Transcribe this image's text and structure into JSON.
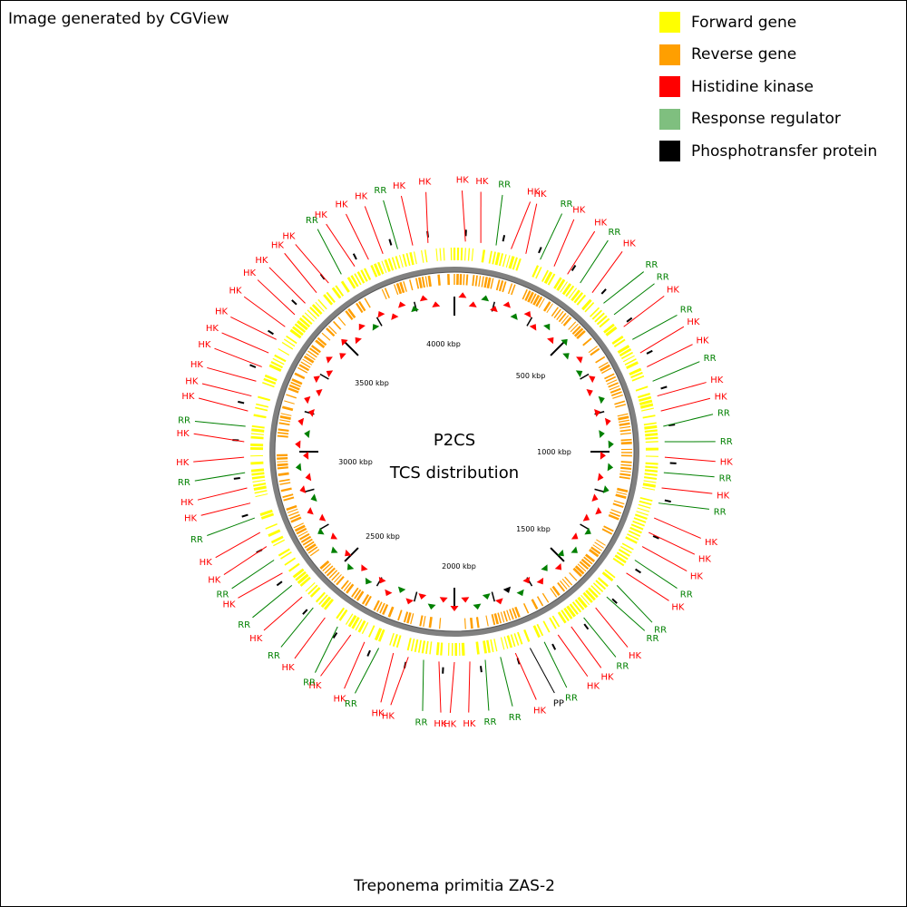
{
  "credit": "Image generated by CGView",
  "legend": [
    {
      "label": "Forward gene",
      "color": "#ffff00"
    },
    {
      "label": "Reverse gene",
      "color": "#ff9f00"
    },
    {
      "label": "Histidine kinase",
      "color": "#ff0000"
    },
    {
      "label": "Response regulator",
      "color": "#7fbf7f"
    },
    {
      "label": "Phosphotransfer protein",
      "color": "#000000"
    }
  ],
  "center": {
    "line1": "P2CS",
    "line2": "TCS distribution"
  },
  "organism": "Treponema primitia ZAS-2",
  "map_data": {
    "type": "circular-genome-map",
    "genome_length_kbp": 4230,
    "scale_labels": [
      "500 kbp",
      "1000 kbp",
      "1500 kbp",
      "2000 kbp",
      "2500 kbp",
      "3000 kbp",
      "3500 kbp",
      "4000 kbp"
    ],
    "feature_colors": {
      "HK": "#ff0000",
      "RR": "#008000",
      "PP": "#000000"
    },
    "track_colors": {
      "forward": "#ffff00",
      "reverse": "#ff9f00",
      "backbone": "#808080"
    },
    "features": [
      {
        "type": "HK",
        "label": "HK"
      },
      {
        "type": "HK",
        "label": "HK"
      },
      {
        "type": "RR",
        "label": "RR"
      },
      {
        "type": "HK",
        "label": "HK"
      },
      {
        "type": "HK",
        "label": "HK"
      },
      {
        "type": "RR",
        "label": "RR"
      },
      {
        "type": "HK",
        "label": "HK"
      },
      {
        "type": "HK",
        "label": "HK"
      },
      {
        "type": "RR",
        "label": "RR"
      },
      {
        "type": "HK",
        "label": "HK"
      },
      {
        "type": "RR",
        "label": "RR"
      },
      {
        "type": "RR",
        "label": "RR"
      },
      {
        "type": "HK",
        "label": "HK"
      },
      {
        "type": "RR",
        "label": "RR"
      },
      {
        "type": "HK",
        "label": "HK"
      },
      {
        "type": "HK",
        "label": "HK"
      },
      {
        "type": "RR",
        "label": "RR"
      },
      {
        "type": "HK",
        "label": "HK"
      },
      {
        "type": "HK",
        "label": "HK"
      },
      {
        "type": "RR",
        "label": "RR"
      },
      {
        "type": "RR",
        "label": "RR"
      },
      {
        "type": "HK",
        "label": "HK"
      },
      {
        "type": "RR",
        "label": "RR"
      },
      {
        "type": "HK",
        "label": "HK"
      },
      {
        "type": "RR",
        "label": "RR"
      },
      {
        "type": "HK",
        "label": "HK"
      },
      {
        "type": "HK",
        "label": "HK"
      },
      {
        "type": "HK",
        "label": "HK"
      },
      {
        "type": "RR",
        "label": "RR"
      },
      {
        "type": "HK",
        "label": "HK"
      },
      {
        "type": "RR",
        "label": "RR"
      },
      {
        "type": "RR",
        "label": "RR"
      },
      {
        "type": "HK",
        "label": "HK"
      },
      {
        "type": "RR",
        "label": "RR"
      },
      {
        "type": "HK",
        "label": "HK"
      },
      {
        "type": "HK",
        "label": "HK"
      },
      {
        "type": "RR",
        "label": "RR"
      },
      {
        "type": "PP",
        "label": "PP"
      },
      {
        "type": "HK",
        "label": "HK"
      },
      {
        "type": "RR",
        "label": "RR"
      },
      {
        "type": "RR",
        "label": "RR"
      },
      {
        "type": "HK",
        "label": "HK"
      },
      {
        "type": "HK",
        "label": "HK"
      },
      {
        "type": "HK",
        "label": "HK"
      },
      {
        "type": "RR",
        "label": "RR"
      },
      {
        "type": "HK",
        "label": "HK"
      },
      {
        "type": "HK",
        "label": "HK"
      },
      {
        "type": "RR",
        "label": "RR"
      },
      {
        "type": "HK",
        "label": "HK"
      },
      {
        "type": "HK",
        "label": "HK"
      },
      {
        "type": "RR",
        "label": "RR"
      },
      {
        "type": "HK",
        "label": "HK"
      },
      {
        "type": "RR",
        "label": "RR"
      },
      {
        "type": "HK",
        "label": "HK"
      },
      {
        "type": "RR",
        "label": "RR"
      },
      {
        "type": "HK",
        "label": "HK"
      },
      {
        "type": "RR",
        "label": "RR"
      },
      {
        "type": "HK",
        "label": "HK"
      },
      {
        "type": "HK",
        "label": "HK"
      },
      {
        "type": "RR",
        "label": "RR"
      },
      {
        "type": "HK",
        "label": "HK"
      },
      {
        "type": "HK",
        "label": "HK"
      },
      {
        "type": "RR",
        "label": "RR"
      },
      {
        "type": "HK",
        "label": "HK"
      },
      {
        "type": "HK",
        "label": "HK"
      },
      {
        "type": "RR",
        "label": "RR"
      },
      {
        "type": "HK",
        "label": "HK"
      },
      {
        "type": "HK",
        "label": "HK"
      },
      {
        "type": "HK",
        "label": "HK"
      },
      {
        "type": "HK",
        "label": "HK"
      },
      {
        "type": "HK",
        "label": "HK"
      },
      {
        "type": "HK",
        "label": "HK"
      },
      {
        "type": "HK",
        "label": "HK"
      },
      {
        "type": "HK",
        "label": "HK"
      },
      {
        "type": "HK",
        "label": "HK"
      },
      {
        "type": "HK",
        "label": "HK"
      },
      {
        "type": "HK",
        "label": "HK"
      },
      {
        "type": "RR",
        "label": "RR"
      },
      {
        "type": "HK",
        "label": "HK"
      },
      {
        "type": "HK",
        "label": "HK"
      },
      {
        "type": "HK",
        "label": "HK"
      },
      {
        "type": "RR",
        "label": "RR"
      },
      {
        "type": "HK",
        "label": "HK"
      },
      {
        "type": "HK",
        "label": "HK"
      }
    ]
  }
}
